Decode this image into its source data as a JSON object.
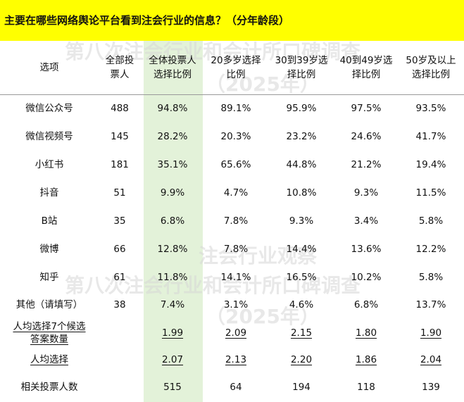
{
  "title": "主要在哪些网络舆论平台看到注会行业的信息？（分年龄段）",
  "watermarks": [
    "第八次注会行业和会计所口碑调查",
    "（2025年）",
    "注会行业观察"
  ],
  "table": {
    "headers": [
      "选项",
      "全部投\n票人",
      "全体投票人\n选择比例",
      "20多岁选择\n比例",
      "30到39岁选\n择比例",
      "40到49岁选\n择比例",
      "50岁及以上\n选择比例"
    ],
    "rows": [
      [
        "微信公众号",
        "488",
        "94.8%",
        "89.1%",
        "95.9%",
        "97.5%",
        "93.5%"
      ],
      [
        "微信视频号",
        "145",
        "28.2%",
        "20.3%",
        "23.2%",
        "24.6%",
        "41.7%"
      ],
      [
        "小红书",
        "181",
        "35.1%",
        "65.6%",
        "44.8%",
        "21.2%",
        "19.4%"
      ],
      [
        "抖音",
        "51",
        "9.9%",
        "4.7%",
        "10.8%",
        "9.3%",
        "11.5%"
      ],
      [
        "B站",
        "35",
        "6.8%",
        "7.8%",
        "9.3%",
        "3.4%",
        "5.8%"
      ],
      [
        "微博",
        "66",
        "12.8%",
        "7.8%",
        "14.4%",
        "13.6%",
        "12.2%"
      ],
      [
        "知乎",
        "61",
        "11.8%",
        "14.1%",
        "16.5%",
        "10.2%",
        "5.8%"
      ],
      [
        "其他（请填写）",
        "38",
        "7.4%",
        "3.1%",
        "4.6%",
        "6.8%",
        "13.7%"
      ]
    ],
    "avg7": {
      "label": "人均选择7个候选\n答案数量",
      "values": [
        "1.99",
        "2.09",
        "2.15",
        "1.80",
        "1.90"
      ]
    },
    "avg": {
      "label": "人均选择",
      "values": [
        "2.07",
        "2.13",
        "2.20",
        "1.86",
        "2.04"
      ]
    },
    "total": {
      "label": "相关投票人数",
      "values": [
        "515",
        "64",
        "194",
        "118",
        "139"
      ]
    }
  },
  "colors": {
    "title_bg": "#ffff00",
    "highlight_col": "#e3f2d9"
  }
}
